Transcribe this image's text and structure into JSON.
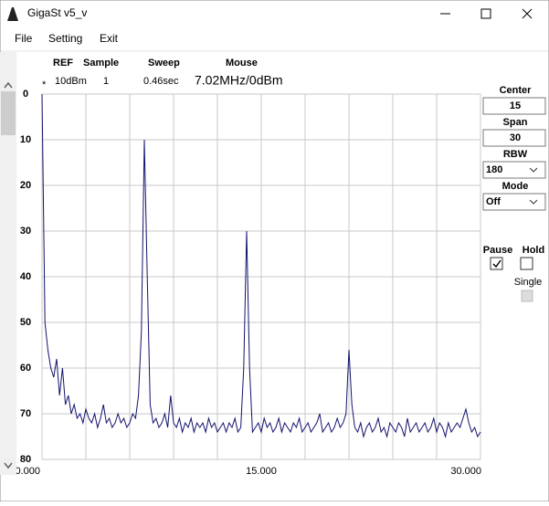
{
  "window": {
    "title": "GigaSt v5_v"
  },
  "menu": [
    "File",
    "Setting",
    "Exit"
  ],
  "status": {
    "headers": [
      "REF",
      "Sample",
      "Sweep",
      "Mouse"
    ],
    "values": [
      "10dBm",
      "1",
      "0.46sec",
      "7.02MHz/0dBm"
    ],
    "marker": "*"
  },
  "controls": {
    "center": {
      "label": "Center",
      "value": "15"
    },
    "span": {
      "label": "Span",
      "value": "30"
    },
    "rbw": {
      "label": "RBW",
      "value": "180"
    },
    "mode": {
      "label": "Mode",
      "value": "Off"
    },
    "pause": {
      "label": "Pause",
      "checked": true
    },
    "hold": {
      "label": "Hold",
      "checked": false
    },
    "single": {
      "label": "Single",
      "checked": false,
      "disabled": true
    }
  },
  "chart_data": {
    "type": "line",
    "x": [
      0,
      0.2,
      0.4,
      0.6,
      0.8,
      1,
      1.2,
      1.4,
      1.6,
      1.8,
      2,
      2.2,
      2.4,
      2.6,
      2.8,
      3,
      3.2,
      3.4,
      3.6,
      3.8,
      4,
      4.2,
      4.4,
      4.6,
      4.8,
      5,
      5.2,
      5.4,
      5.6,
      5.8,
      6,
      6.2,
      6.4,
      6.6,
      6.8,
      7,
      7.2,
      7.4,
      7.6,
      7.8,
      8,
      8.2,
      8.4,
      8.6,
      8.8,
      9,
      9.2,
      9.4,
      9.6,
      9.8,
      10,
      10.2,
      10.4,
      10.6,
      10.8,
      11,
      11.2,
      11.4,
      11.6,
      11.8,
      12,
      12.2,
      12.4,
      12.6,
      12.8,
      13,
      13.2,
      13.4,
      13.6,
      13.8,
      14,
      14.2,
      14.4,
      14.6,
      14.8,
      15,
      15.2,
      15.4,
      15.6,
      15.8,
      16,
      16.2,
      16.4,
      16.6,
      16.8,
      17,
      17.2,
      17.4,
      17.6,
      17.8,
      18,
      18.2,
      18.4,
      18.6,
      18.8,
      19,
      19.2,
      19.4,
      19.6,
      19.8,
      20,
      20.2,
      20.4,
      20.6,
      20.8,
      21,
      21.2,
      21.4,
      21.6,
      21.8,
      22,
      22.2,
      22.4,
      22.6,
      22.8,
      23,
      23.2,
      23.4,
      23.6,
      23.8,
      24,
      24.2,
      24.4,
      24.6,
      24.8,
      25,
      25.2,
      25.4,
      25.6,
      25.8,
      26,
      26.2,
      26.4,
      26.6,
      26.8,
      27,
      27.2,
      27.4,
      27.6,
      27.8,
      28,
      28.2,
      28.4,
      28.6,
      28.8,
      29,
      29.2,
      29.4,
      29.6,
      29.8,
      30
    ],
    "series": [
      {
        "color": "#12126e",
        "values": [
          0,
          50,
          56,
          60,
          62,
          58,
          66,
          60,
          68,
          66,
          70,
          68,
          71,
          70,
          72,
          69,
          71,
          72,
          70,
          73,
          71,
          68,
          72,
          71,
          73,
          72,
          70,
          72,
          71,
          73,
          72,
          70,
          71,
          66,
          52,
          10,
          40,
          68,
          72,
          71,
          73,
          72,
          70,
          73,
          66,
          72,
          73,
          71,
          74,
          72,
          73,
          71,
          74,
          72,
          73,
          72,
          74,
          71,
          73,
          72,
          74,
          73,
          72,
          74,
          72,
          73,
          71,
          74,
          73,
          60,
          30,
          60,
          74,
          73,
          72,
          74,
          71,
          73,
          72,
          74,
          73,
          71,
          74,
          72,
          73,
          74,
          72,
          73,
          71,
          74,
          73,
          72,
          74,
          73,
          72,
          70,
          74,
          73,
          72,
          74,
          73,
          71,
          73,
          72,
          70,
          56,
          68,
          73,
          74,
          72,
          75,
          73,
          72,
          74,
          73,
          71,
          74,
          73,
          75,
          72,
          73,
          74,
          72,
          73,
          75,
          71,
          74,
          73,
          72,
          74,
          73,
          72,
          74,
          73,
          71,
          74,
          72,
          73,
          75,
          72,
          74,
          73,
          72,
          73,
          71,
          69,
          72,
          74,
          73,
          75,
          74
        ]
      }
    ],
    "xlim": [
      0,
      30
    ],
    "ylim": [
      0,
      80
    ],
    "y_reversed": true,
    "xticks": [
      {
        "value": 0,
        "label": "0.000"
      },
      {
        "value": 15,
        "label": "15.000"
      },
      {
        "value": 30,
        "label": "30.000"
      }
    ],
    "xgrid": [
      0,
      3,
      6,
      9,
      12,
      15,
      18,
      21,
      24,
      27,
      30
    ],
    "yticks": [
      0,
      10,
      20,
      30,
      40,
      50,
      60,
      70,
      80
    ],
    "grid": true
  }
}
